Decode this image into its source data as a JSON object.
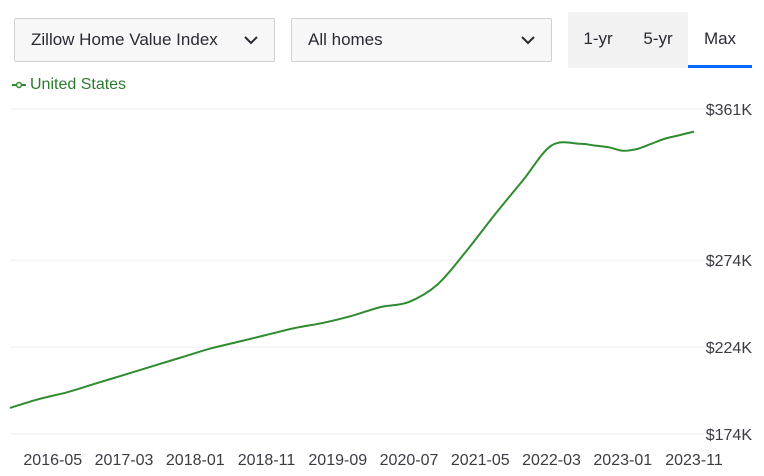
{
  "controls": {
    "metric_select": "Zillow Home Value Index",
    "home_type_select": "All homes",
    "range_tabs": [
      "1-yr",
      "5-yr",
      "Max"
    ],
    "active_tab": "Max"
  },
  "colors": {
    "line": "#2e8b30",
    "accent": "#006aff",
    "grid": "#eeeeee"
  },
  "icons": {
    "select_arrow": "chevron-down-icon",
    "legend_marker": "line-point-icon"
  },
  "chart_data": {
    "type": "line",
    "series": [
      {
        "name": "United States",
        "x": [
          "2015-11",
          "2016-03",
          "2016-07",
          "2016-11",
          "2017-03",
          "2017-07",
          "2017-11",
          "2018-03",
          "2018-07",
          "2018-11",
          "2019-03",
          "2019-07",
          "2019-11",
          "2020-03",
          "2020-07",
          "2020-11",
          "2021-03",
          "2021-07",
          "2021-11",
          "2022-03",
          "2022-07",
          "2022-09",
          "2022-11",
          "2023-01",
          "2023-03",
          "2023-05",
          "2023-07",
          "2023-09",
          "2023-11"
        ],
        "values": [
          189,
          194,
          198,
          203,
          208,
          213,
          218,
          223,
          227,
          231,
          235,
          238,
          242,
          247,
          250,
          260,
          279,
          300,
          320,
          340,
          341,
          340,
          339,
          337,
          338,
          341,
          344,
          346,
          348
        ]
      }
    ],
    "x_ticks": [
      "2016-05",
      "2017-03",
      "2018-01",
      "2018-11",
      "2019-09",
      "2020-07",
      "2021-05",
      "2022-03",
      "2023-01",
      "2023-11"
    ],
    "y_ticks": [
      174,
      224,
      274,
      361
    ],
    "y_tick_labels": [
      "$174K",
      "$224K",
      "$274K",
      "$361K"
    ],
    "ylim": [
      174,
      361
    ],
    "y_unit": "thousand USD",
    "grid": true,
    "legend_position": "top-left"
  }
}
